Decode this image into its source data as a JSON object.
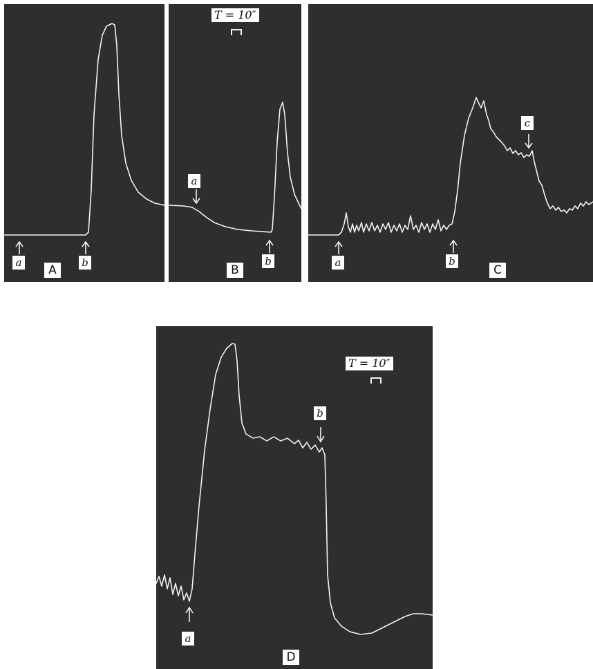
{
  "panels": {
    "A": {
      "letter": "A",
      "markers": {
        "a": "a",
        "b": "b"
      }
    },
    "B": {
      "letter": "B",
      "markers": {
        "a": "a",
        "b": "b"
      },
      "time_scale": "T = 10″"
    },
    "C": {
      "letter": "C",
      "markers": {
        "a": "a",
        "b": "b",
        "c": "c"
      }
    },
    "D": {
      "letter": "D",
      "markers": {
        "a": "a",
        "b": "b"
      },
      "time_scale": "T = 10″"
    }
  },
  "colors": {
    "panel_background": "#2e2e2e",
    "trace": "#f2f2f2",
    "page": "#ffffff"
  }
}
